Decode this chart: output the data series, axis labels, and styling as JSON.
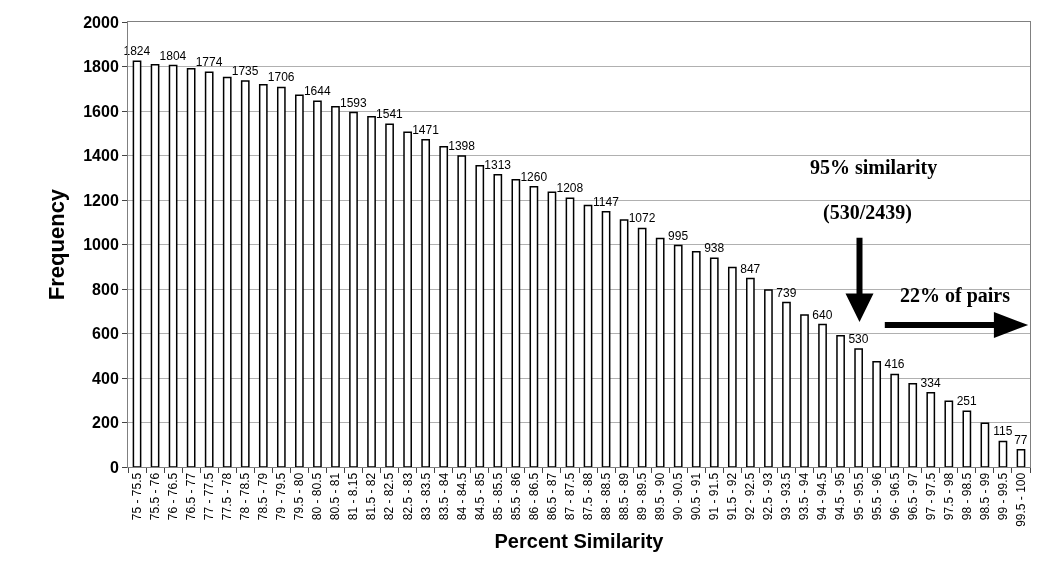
{
  "chart_data": {
    "type": "bar",
    "xlabel": "Percent Similarity",
    "ylabel": "Frequency",
    "categories": [
      "75 - 75.5",
      "75.5 - 76",
      "76 - 76.5",
      "76.5 - 77",
      "77 - 77.5",
      "77.5 - 78",
      "78 - 78.5",
      "78.5 - 79",
      "79 - 79.5",
      "79.5 - 80",
      "80 - 80.5",
      "80.5 - 81",
      "81 - 8.15",
      "81.5 - 82",
      "82 - 82.5",
      "82.5 - 83",
      "83 - 83.5",
      "83.5 - 84",
      "84 - 84.5",
      "84.5 - 85",
      "85 - 85.5",
      "85.5 - 86",
      "86 - 86.5",
      "86.5 - 87",
      "87 - 87.5",
      "87.5 - 88",
      "88 - 88.5",
      "88.5 - 89",
      "89 - 89.5",
      "89.5 - 90",
      "90 - 90.5",
      "90.5 - 91",
      "91 - 91.5",
      "91.5 - 92",
      "92 - 92.5",
      "92.5 - 93",
      "93 - 93.5",
      "93.5 - 94",
      "94 - 94.5",
      "94.5 - 95",
      "95 - 95.5",
      "95.5 - 96",
      "96 - 96.5",
      "96.5 - 97",
      "97 - 97.5",
      "97.5 - 98",
      "98 - 98.5",
      "98.5 - 99",
      "99 - 99.5",
      "99.5 - 100"
    ],
    "values": [
      1824,
      1808,
      1804,
      1790,
      1774,
      1751,
      1735,
      1718,
      1706,
      1671,
      1644,
      1619,
      1593,
      1574,
      1541,
      1505,
      1471,
      1439,
      1398,
      1354,
      1313,
      1291,
      1260,
      1235,
      1208,
      1175,
      1147,
      1110,
      1072,
      1027,
      995,
      967,
      938,
      897,
      847,
      796,
      739,
      683,
      640,
      590,
      530,
      473,
      416,
      374,
      334,
      295,
      251,
      197,
      115,
      77
    ],
    "value_labels": [
      "1824",
      null,
      "1804",
      null,
      "1774",
      null,
      "1735",
      null,
      "1706",
      null,
      "1644",
      null,
      "1593",
      null,
      "1541",
      null,
      "1471",
      null,
      "1398",
      null,
      "1313",
      null,
      "1260",
      null,
      "1208",
      null,
      "1147",
      null,
      "1072",
      null,
      "995",
      null,
      "938",
      null,
      "847",
      null,
      "739",
      null,
      "640",
      null,
      "530",
      null,
      "416",
      null,
      "334",
      null,
      "251",
      null,
      "115",
      "77"
    ],
    "color": "#ffffff",
    "ylim": [
      0,
      2000
    ],
    "yticks": [
      0,
      200,
      400,
      600,
      800,
      1000,
      1200,
      1400,
      1600,
      1800,
      2000
    ],
    "grid": "y",
    "annotations": [
      "95% similarity",
      "(530/2439)",
      "22% of pairs"
    ]
  }
}
